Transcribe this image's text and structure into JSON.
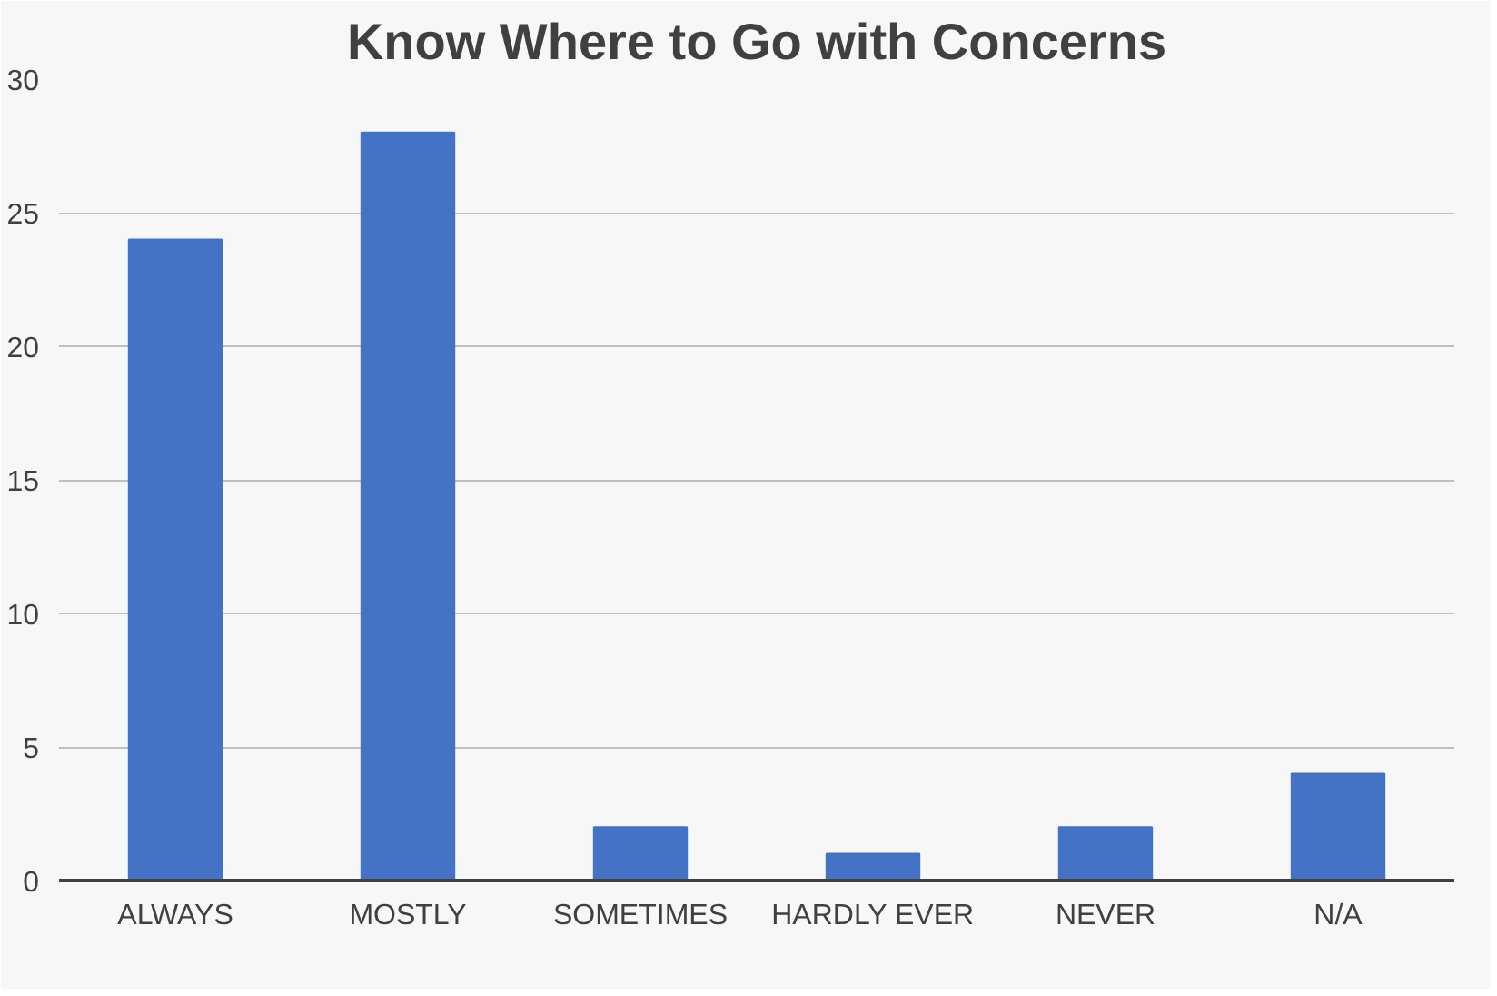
{
  "chart_data": {
    "type": "bar",
    "title": "Know Where to Go with Concerns",
    "categories": [
      "ALWAYS",
      "MOSTLY",
      "SOMETIMES",
      "HARDLY EVER",
      "NEVER",
      "N/A"
    ],
    "values": [
      24,
      28,
      2,
      1,
      2,
      4
    ],
    "color": "#4472c4",
    "ylim": [
      0,
      30
    ],
    "yticks": [
      0,
      5,
      10,
      15,
      20,
      25,
      30
    ],
    "grid": "y"
  }
}
